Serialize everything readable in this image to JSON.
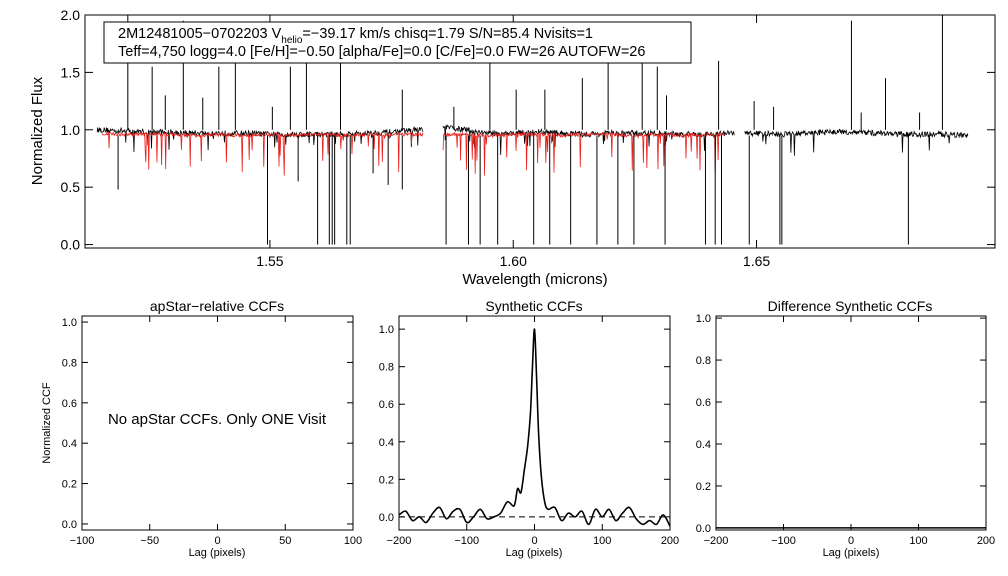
{
  "info_box": {
    "line1_a": "2M12481005−0702203  V",
    "line1_sub": "helio",
    "line1_b": "=−39.17 km/s  chisq=1.79  S/N=85.4  Nvisits=1",
    "line2": "Teff=4,750 logg=4.0 [Fe/H]=−0.50 [alpha/Fe]=0.0 [C/Fe]=0.0 FW=26 AUTOFW=26"
  },
  "colors": {
    "observed": "#000000",
    "model": "#e8201c",
    "ccf": "#000000"
  },
  "chart_data": [
    {
      "id": "spectrum",
      "type": "line",
      "title": "",
      "xlabel": "Wavelength (microns)",
      "ylabel": "Normalized Flux",
      "xlim": [
        1.512,
        1.699
      ],
      "ylim": [
        -0.03,
        2.0
      ],
      "xticks": [
        1.55,
        1.6,
        1.65
      ],
      "xtick_labels": [
        "1.55",
        "1.60",
        "1.65"
      ],
      "yticks": [
        0.0,
        0.5,
        1.0,
        1.5,
        2.0
      ],
      "ytick_labels": [
        "0.0",
        "0.5",
        "1.0",
        "1.5",
        "2.0"
      ],
      "series": [
        {
          "role": "observed",
          "x": [
            1.5145,
            1.52,
            1.525,
            1.53,
            1.535,
            1.54,
            1.545,
            1.55,
            1.555,
            1.56,
            1.565,
            1.57,
            1.575,
            1.58,
            1.5865,
            1.59,
            1.595,
            1.6,
            1.605,
            1.61,
            1.615,
            1.62,
            1.625,
            1.63,
            1.635,
            1.64,
            1.6445,
            1.6485,
            1.655,
            1.66,
            1.665,
            1.67,
            1.675,
            1.68,
            1.685,
            1.69,
            1.6935
          ],
          "y": [
            1.0,
            0.99,
            0.98,
            0.98,
            0.97,
            0.97,
            0.97,
            0.96,
            0.96,
            0.96,
            0.96,
            0.97,
            0.98,
            1.0,
            1.02,
            1.0,
            0.97,
            0.97,
            0.98,
            0.97,
            0.96,
            0.97,
            0.97,
            0.97,
            0.96,
            0.96,
            0.97,
            0.97,
            0.96,
            0.97,
            0.98,
            0.98,
            0.97,
            0.96,
            0.96,
            0.96,
            0.95
          ]
        },
        {
          "role": "model",
          "x": [
            1.5155,
            1.52,
            1.525,
            1.53,
            1.535,
            1.54,
            1.545,
            1.55,
            1.555,
            1.56,
            1.565,
            1.57,
            1.575,
            1.5785,
            1.589,
            1.595,
            1.6,
            1.605,
            1.61,
            1.615,
            1.62,
            1.625,
            1.63,
            1.635,
            1.64,
            1.6435
          ],
          "y": [
            0.97,
            0.96,
            0.96,
            0.96,
            0.95,
            0.96,
            0.95,
            0.96,
            0.95,
            0.96,
            0.95,
            0.96,
            0.96,
            0.96,
            0.96,
            0.95,
            0.96,
            0.96,
            0.95,
            0.96,
            0.96,
            0.95,
            0.96,
            0.95,
            0.96,
            0.96
          ]
        }
      ],
      "emission_spikes": [
        {
          "x": 1.5208,
          "y": 2.0
        },
        {
          "x": 1.5258,
          "y": 1.55
        },
        {
          "x": 1.5285,
          "y": 1.3
        },
        {
          "x": 1.5322,
          "y": 1.95
        },
        {
          "x": 1.5362,
          "y": 1.28
        },
        {
          "x": 1.5395,
          "y": 1.55
        },
        {
          "x": 1.5429,
          "y": 1.8
        },
        {
          "x": 1.5505,
          "y": 1.2
        },
        {
          "x": 1.5542,
          "y": 1.55
        },
        {
          "x": 1.5575,
          "y": 1.65
        },
        {
          "x": 1.5645,
          "y": 1.7
        },
        {
          "x": 1.5772,
          "y": 1.35
        },
        {
          "x": 1.5878,
          "y": 1.2
        },
        {
          "x": 1.5952,
          "y": 1.7
        },
        {
          "x": 1.6006,
          "y": 1.35
        },
        {
          "x": 1.6065,
          "y": 1.35
        },
        {
          "x": 1.6142,
          "y": 1.45
        },
        {
          "x": 1.6195,
          "y": 1.7
        },
        {
          "x": 1.6265,
          "y": 1.6
        },
        {
          "x": 1.6296,
          "y": 1.55
        },
        {
          "x": 1.6315,
          "y": 1.3
        },
        {
          "x": 1.6422,
          "y": 1.6
        },
        {
          "x": 1.6495,
          "y": 1.25
        },
        {
          "x": 1.6535,
          "y": 1.2
        },
        {
          "x": 1.6695,
          "y": 1.95
        },
        {
          "x": 1.6715,
          "y": 1.15
        },
        {
          "x": 1.6765,
          "y": 1.45
        },
        {
          "x": 1.6835,
          "y": 1.15
        },
        {
          "x": 1.6882,
          "y": 2.0
        }
      ],
      "absorption_dips": [
        {
          "x": 1.5188,
          "y": 0.48
        },
        {
          "x": 1.5495,
          "y": 0.0
        },
        {
          "x": 1.5558,
          "y": 0.55
        },
        {
          "x": 1.5598,
          "y": 0.0
        },
        {
          "x": 1.5622,
          "y": 0.0
        },
        {
          "x": 1.5628,
          "y": 0.0
        },
        {
          "x": 1.5633,
          "y": 0.0
        },
        {
          "x": 1.5658,
          "y": 0.0
        },
        {
          "x": 1.5665,
          "y": 0.0
        },
        {
          "x": 1.5712,
          "y": 0.62
        },
        {
          "x": 1.5743,
          "y": 0.52
        },
        {
          "x": 1.5772,
          "y": 0.48
        },
        {
          "x": 1.5862,
          "y": 0.0
        },
        {
          "x": 1.5908,
          "y": 0.0
        },
        {
          "x": 1.5932,
          "y": 0.0
        },
        {
          "x": 1.5968,
          "y": 0.0
        },
        {
          "x": 1.6042,
          "y": 0.0
        },
        {
          "x": 1.6075,
          "y": 0.0
        },
        {
          "x": 1.6118,
          "y": 0.0
        },
        {
          "x": 1.6172,
          "y": 0.0
        },
        {
          "x": 1.6215,
          "y": 0.0
        },
        {
          "x": 1.6248,
          "y": 0.0
        },
        {
          "x": 1.6312,
          "y": 0.0
        },
        {
          "x": 1.6395,
          "y": 0.0
        },
        {
          "x": 1.6415,
          "y": 0.0
        },
        {
          "x": 1.6428,
          "y": 0.0
        },
        {
          "x": 1.6485,
          "y": 0.0
        },
        {
          "x": 1.6548,
          "y": 0.0
        },
        {
          "x": 1.6552,
          "y": 0.0
        },
        {
          "x": 1.6812,
          "y": 0.0
        }
      ]
    },
    {
      "id": "apstar",
      "type": "line",
      "title": "apStar−relative CCFs",
      "xlabel": "Lag (pixels)",
      "ylabel": "Normalized CCF",
      "xlim": [
        -100,
        100
      ],
      "ylim": [
        -0.03,
        1.03
      ],
      "xticks": [
        -100,
        -50,
        0,
        50,
        100
      ],
      "xtick_labels": [
        "−100",
        "−50",
        "0",
        "50",
        "100"
      ],
      "yticks": [
        0.0,
        0.2,
        0.4,
        0.6,
        0.8,
        1.0
      ],
      "ytick_labels": [
        "0.0",
        "0.2",
        "0.4",
        "0.6",
        "0.8",
        "1.0"
      ],
      "message": "No apStar CCFs.  Only ONE Visit",
      "series": []
    },
    {
      "id": "synthetic",
      "type": "line",
      "title": "Synthetic CCFs",
      "xlabel": "Lag (pixels)",
      "ylabel": "",
      "xlim": [
        -200,
        200
      ],
      "ylim": [
        -0.07,
        1.07
      ],
      "xticks": [
        -200,
        -100,
        0,
        100,
        200
      ],
      "xtick_labels": [
        "−200",
        "−100",
        "0",
        "100",
        "200"
      ],
      "yticks": [
        0.0,
        0.2,
        0.4,
        0.6,
        0.8,
        1.0
      ],
      "ytick_labels": [
        "0.0",
        "0.2",
        "0.4",
        "0.6",
        "0.8",
        "1.0"
      ],
      "reference_line": 0.0,
      "series": [
        {
          "role": "ccf",
          "x": [
            -200,
            -190,
            -180,
            -170,
            -160,
            -150,
            -140,
            -130,
            -120,
            -110,
            -100,
            -90,
            -80,
            -70,
            -60,
            -50,
            -40,
            -30,
            -25,
            -20,
            -15,
            -10,
            -6,
            -3,
            0,
            3,
            6,
            10,
            15,
            20,
            30,
            40,
            50,
            60,
            70,
            80,
            90,
            100,
            110,
            120,
            130,
            140,
            150,
            160,
            170,
            180,
            190,
            200
          ],
          "y": [
            0.01,
            0.03,
            -0.02,
            0.0,
            -0.03,
            0.02,
            0.05,
            -0.01,
            0.03,
            0.04,
            -0.03,
            0.0,
            0.04,
            -0.01,
            0.0,
            0.02,
            0.08,
            0.06,
            0.15,
            0.13,
            0.25,
            0.38,
            0.55,
            0.8,
            1.0,
            0.75,
            0.45,
            0.22,
            0.08,
            0.04,
            0.05,
            -0.02,
            0.02,
            0.0,
            0.03,
            -0.04,
            0.04,
            0.0,
            0.04,
            -0.02,
            0.02,
            0.05,
            -0.01,
            -0.04,
            -0.02,
            -0.04,
            0.01,
            -0.05
          ]
        }
      ]
    },
    {
      "id": "difference",
      "type": "line",
      "title": "Difference Synthetic CCFs",
      "xlabel": "Lag (pixels)",
      "ylabel": "",
      "xlim": [
        -200,
        200
      ],
      "ylim": [
        -0.01,
        1.01
      ],
      "xticks": [
        -200,
        -100,
        0,
        100,
        200
      ],
      "xtick_labels": [
        "−200",
        "−100",
        "0",
        "100",
        "200"
      ],
      "yticks": [
        0.0,
        0.2,
        0.4,
        0.6,
        0.8,
        1.0
      ],
      "ytick_labels": [
        "0.0",
        "0.2",
        "0.4",
        "0.6",
        "0.8",
        "1.0"
      ],
      "series": [
        {
          "role": "ccf",
          "x": [
            -200,
            200
          ],
          "y": [
            0.0,
            0.0
          ]
        }
      ]
    }
  ]
}
